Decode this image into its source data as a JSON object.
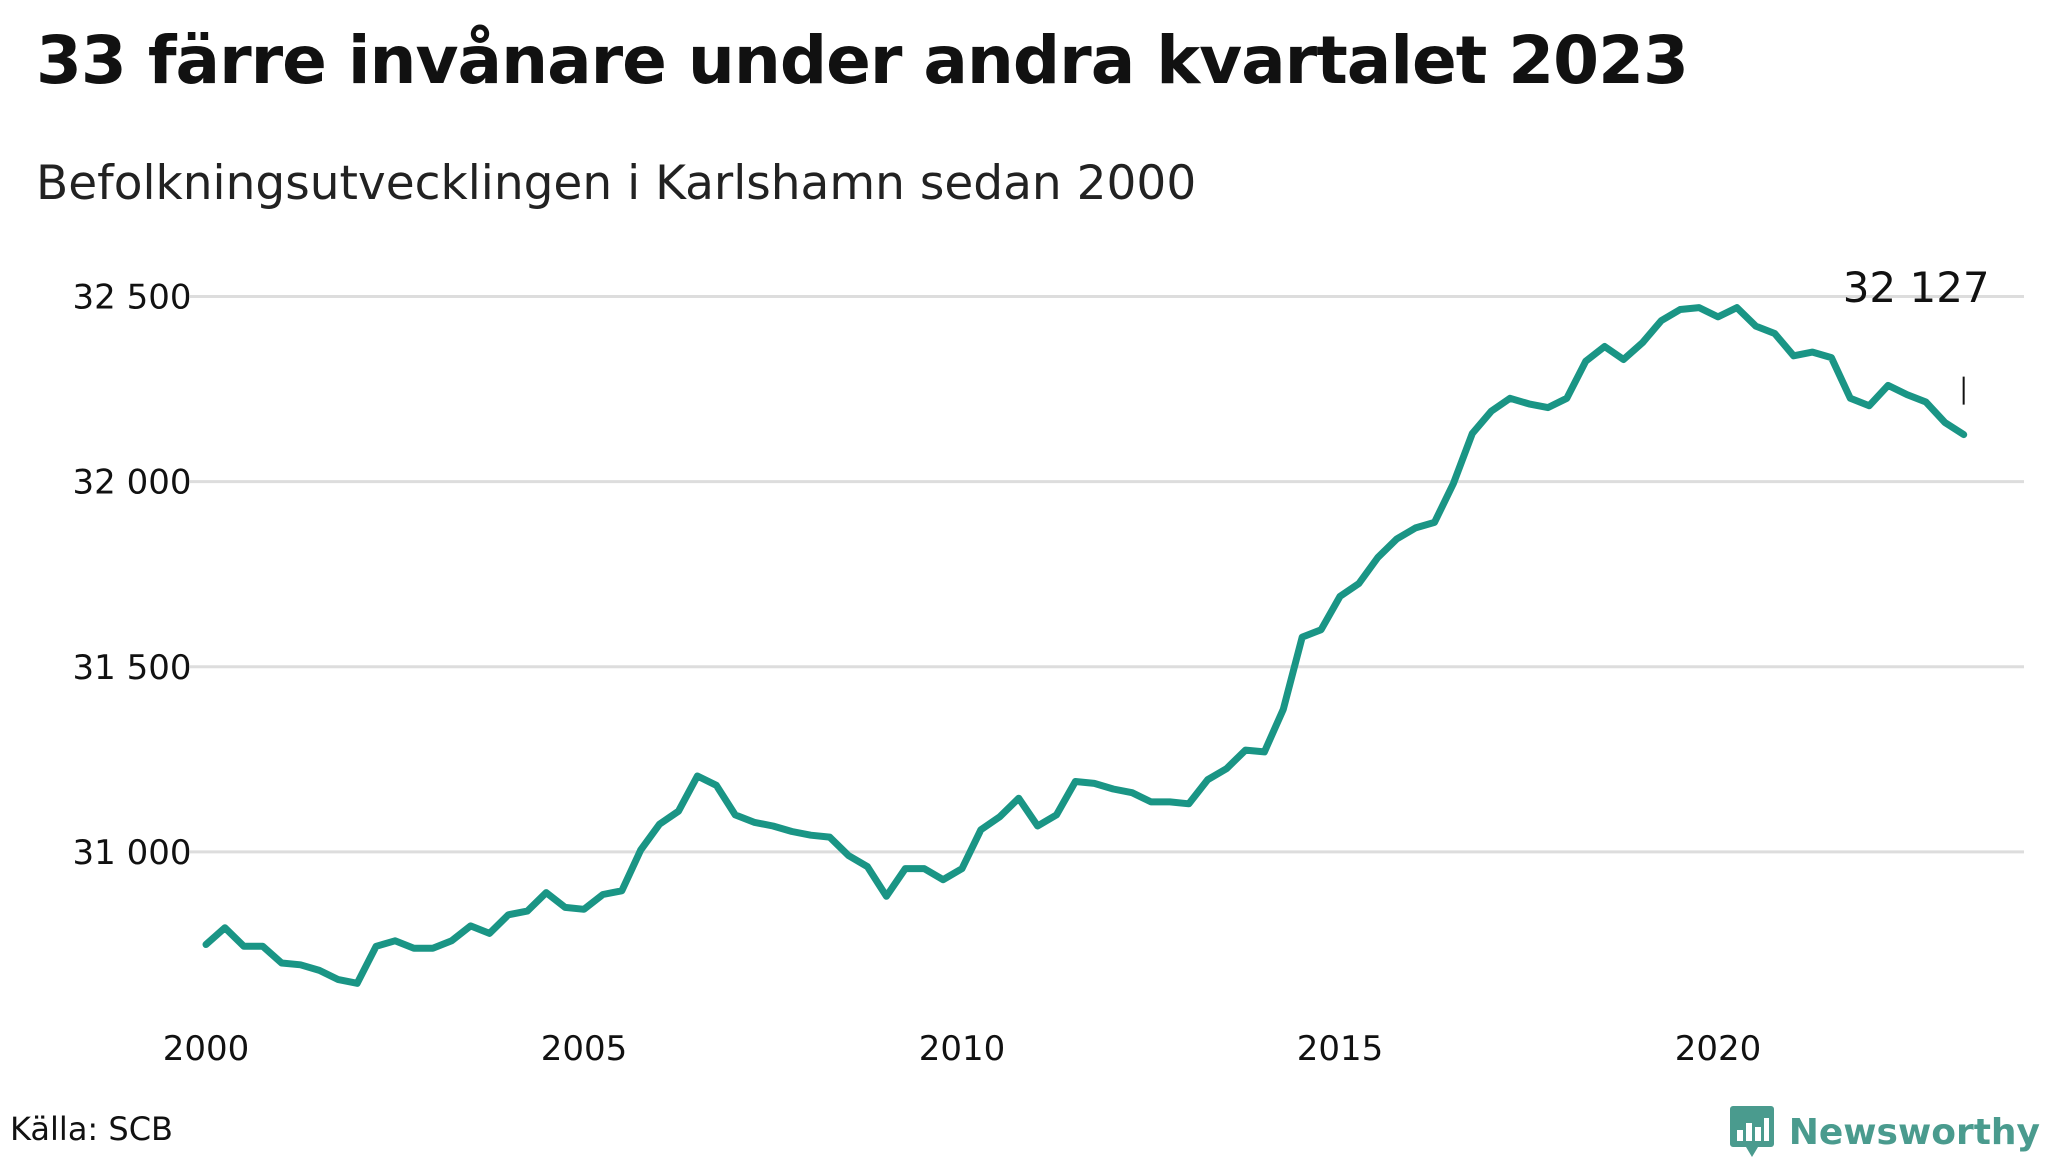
{
  "header": {
    "title": "33 färre invånare under andra kvartalet 2023",
    "subtitle": "Befolkningsutvecklingen i Karlshamn sedan 2000"
  },
  "footer": {
    "source": "Källa: SCB",
    "brand": "Newsworthy",
    "brand_icon": "bar-chart-speech-bubble-icon"
  },
  "colors": {
    "line": "#1a9585",
    "grid": "#dddddd",
    "brand": "#4a9b8e",
    "text": "#111111"
  },
  "chart_data": {
    "type": "line",
    "title": "33 färre invånare under andra kvartalet 2023",
    "subtitle": "Befolkningsutvecklingen i Karlshamn sedan 2000",
    "xlabel": "",
    "ylabel": "",
    "xlim": [
      2000,
      2023.4
    ],
    "ylim": [
      30600,
      32550
    ],
    "x_ticks": [
      2000,
      2005,
      2010,
      2015,
      2020
    ],
    "x_tick_labels": [
      "2000",
      "2005",
      "2010",
      "2015",
      "2020"
    ],
    "y_ticks": [
      31000,
      31500,
      32000,
      32500
    ],
    "y_tick_labels": [
      "31 000",
      "31 500",
      "32 000",
      "32 500"
    ],
    "grid": "horizontal",
    "legend": "none",
    "annotation": {
      "label": "32 127",
      "x": 2023.25,
      "y": 32127
    },
    "series": [
      {
        "x": [
          2000.0,
          2000.25,
          2000.5,
          2000.75,
          2001.0,
          2001.25,
          2001.5,
          2001.75,
          2002.0,
          2002.25,
          2002.5,
          2002.75,
          2003.0,
          2003.25,
          2003.5,
          2003.75,
          2004.0,
          2004.25,
          2004.5,
          2004.75,
          2005.0,
          2005.25,
          2005.5,
          2005.75,
          2006.0,
          2006.25,
          2006.5,
          2006.75,
          2007.0,
          2007.25,
          2007.5,
          2007.75,
          2008.0,
          2008.25,
          2008.5,
          2008.75,
          2009.0,
          2009.25,
          2009.5,
          2009.75,
          2010.0,
          2010.25,
          2010.5,
          2010.75,
          2011.0,
          2011.25,
          2011.5,
          2011.75,
          2012.0,
          2012.25,
          2012.5,
          2012.75,
          2013.0,
          2013.25,
          2013.5,
          2013.75,
          2014.0,
          2014.25,
          2014.5,
          2014.75,
          2015.0,
          2015.25,
          2015.5,
          2015.75,
          2016.0,
          2016.25,
          2016.5,
          2016.75,
          2017.0,
          2017.25,
          2017.5,
          2017.75,
          2018.0,
          2018.25,
          2018.5,
          2018.75,
          2019.0,
          2019.25,
          2019.5,
          2019.75,
          2020.0,
          2020.25,
          2020.5,
          2020.75,
          2021.0,
          2021.25,
          2021.5,
          2021.75,
          2022.0,
          2022.25,
          2022.5,
          2022.75,
          2023.0,
          2023.25
        ],
        "values": [
          30750,
          30795,
          30745,
          30745,
          30700,
          30695,
          30680,
          30655,
          30645,
          30745,
          30760,
          30740,
          30740,
          30760,
          30800,
          30780,
          30830,
          30840,
          30890,
          30850,
          30845,
          30885,
          30895,
          31005,
          31075,
          31110,
          31205,
          31180,
          31100,
          31080,
          31070,
          31055,
          31045,
          31040,
          30990,
          30960,
          30880,
          30955,
          30955,
          30925,
          30955,
          31060,
          31095,
          31145,
          31070,
          31100,
          31190,
          31185,
          31170,
          31160,
          31135,
          31135,
          31130,
          31195,
          31225,
          31275,
          31270,
          31385,
          31580,
          31600,
          31690,
          31725,
          31795,
          31845,
          31875,
          31890,
          31995,
          32130,
          32190,
          32225,
          32210,
          32200,
          32225,
          32325,
          32365,
          32330,
          32375,
          32435,
          32465,
          32470,
          32445,
          32470,
          32420,
          32400,
          32340,
          32350,
          32335,
          32225,
          32205,
          32260,
          32235,
          32215,
          32160,
          32127
        ]
      }
    ]
  }
}
